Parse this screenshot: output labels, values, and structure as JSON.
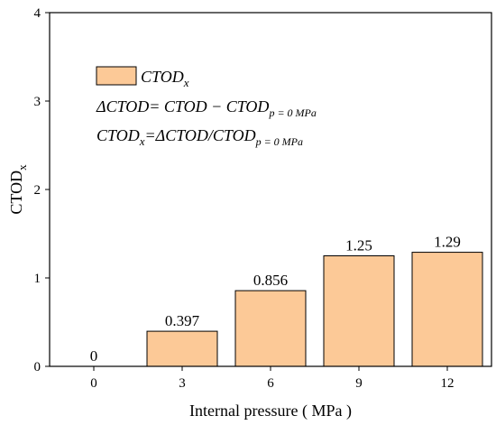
{
  "chart_data": {
    "type": "bar",
    "categories": [
      "0",
      "3",
      "6",
      "9",
      "12"
    ],
    "values": [
      0,
      0.397,
      0.856,
      1.25,
      1.29
    ],
    "data_labels": [
      "0",
      "0.397",
      "0.856",
      "1.25",
      "1.29"
    ],
    "xlabel": "Internal pressure ( MPa )",
    "ylabel_main": "CTOD",
    "ylabel_sub": "x",
    "ylim": [
      0,
      4
    ],
    "yticks": [
      "0",
      "1",
      "2",
      "3",
      "4"
    ],
    "bar_color": "#fcc997",
    "bar_edge": "#000000",
    "grid": false,
    "legend": {
      "placement": "top-left",
      "entry_main": "CTOD",
      "entry_sub": "x",
      "eq1_a": "ΔCTOD= CTOD − CTOD",
      "eq1_sub": "p = 0 MPa",
      "eq2_a": "CTOD",
      "eq2_sub1": "x",
      "eq2_b": "=ΔCTOD/CTOD",
      "eq2_sub2": "p = 0 MPa"
    }
  }
}
